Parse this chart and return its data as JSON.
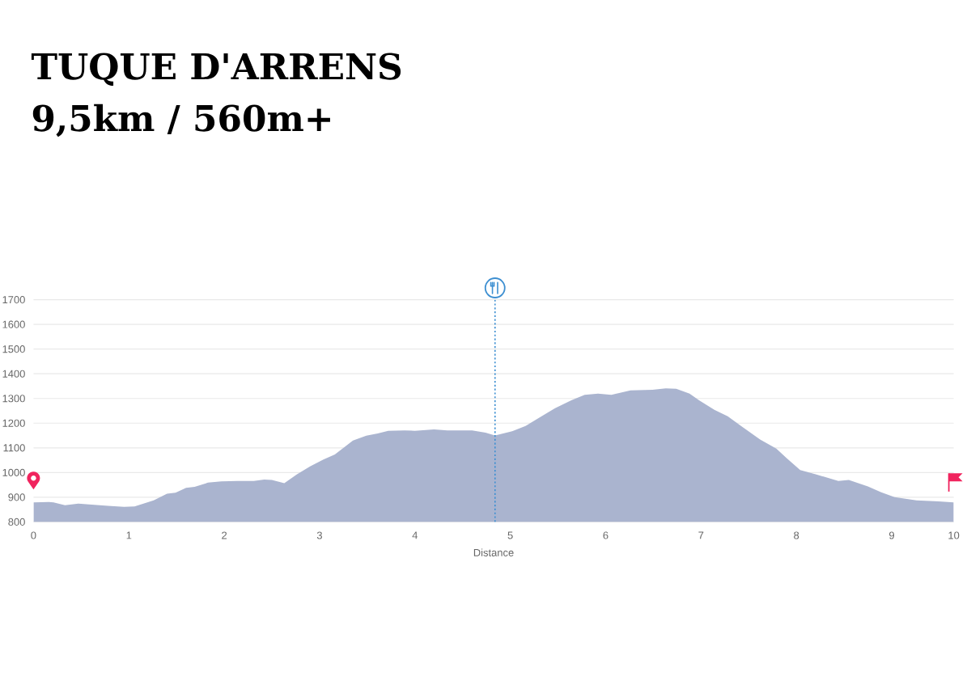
{
  "chart_data": {
    "type": "area",
    "title": "TUQUE D'ARRENS",
    "subtitle": "9,5km / 560m+",
    "xlabel": "Distance",
    "x": [
      0,
      0.16,
      0.21,
      0.33,
      0.47,
      0.61,
      0.78,
      0.95,
      1.06,
      1.26,
      1.4,
      1.49,
      1.6,
      1.69,
      1.83,
      1.97,
      2.14,
      2.31,
      2.42,
      2.5,
      2.63,
      2.76,
      2.9,
      3.04,
      3.16,
      3.24,
      3.35,
      3.49,
      3.61,
      3.72,
      3.89,
      4.0,
      4.2,
      4.34,
      4.6,
      4.74,
      4.84,
      5.02,
      5.16,
      5.3,
      5.47,
      5.64,
      5.78,
      5.92,
      6.06,
      6.26,
      6.49,
      6.63,
      6.74,
      6.88,
      6.98,
      7.14,
      7.28,
      7.42,
      7.62,
      7.79,
      7.9,
      8.04,
      8.21,
      8.44,
      8.55,
      8.75,
      8.89,
      9.03,
      9.26,
      9.49,
      9.65
    ],
    "values": [
      879,
      881,
      879,
      868,
      874,
      870,
      865,
      861,
      863,
      887,
      914,
      918,
      938,
      942,
      959,
      964,
      966,
      966,
      972,
      970,
      957,
      992,
      1025,
      1053,
      1073,
      1097,
      1130,
      1149,
      1158,
      1169,
      1171,
      1169,
      1175,
      1171,
      1171,
      1162,
      1150,
      1167,
      1189,
      1221,
      1261,
      1293,
      1315,
      1320,
      1315,
      1333,
      1335,
      1341,
      1339,
      1320,
      1293,
      1254,
      1228,
      1189,
      1134,
      1097,
      1058,
      1010,
      992,
      966,
      970,
      944,
      920,
      900,
      887,
      883,
      879
    ],
    "color": "#aab4cf",
    "xlim": [
      0,
      9.65
    ],
    "ylim": [
      800,
      1700
    ],
    "xticks": [
      0,
      1,
      2,
      3,
      4,
      5,
      6,
      7,
      8,
      9,
      {
        "value": 9.65,
        "label": "10"
      }
    ],
    "yticks": [
      800,
      900,
      1000,
      1100,
      1200,
      1300,
      1400,
      1500,
      1600,
      1700
    ],
    "grid": "y",
    "ref_lines": [
      {
        "axis": "x",
        "value": 4.84,
        "color": "#3d8fd1",
        "line_style": "dotted"
      }
    ]
  }
}
